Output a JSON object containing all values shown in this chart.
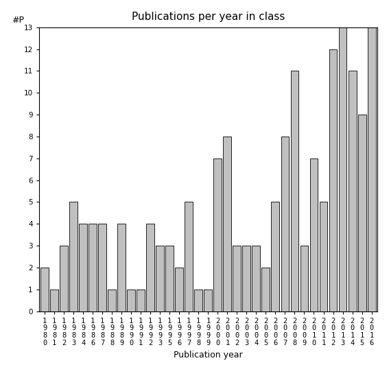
{
  "years": [
    "1980",
    "1981",
    "1982",
    "1983",
    "1984",
    "1986",
    "1987",
    "1988",
    "1989",
    "1990",
    "1991",
    "1992",
    "1993",
    "1995",
    "1996",
    "1997",
    "1998",
    "1999",
    "2000",
    "2001",
    "2002",
    "2003",
    "2004",
    "2005",
    "2006",
    "2007",
    "2008",
    "2009",
    "2010",
    "2011",
    "2012",
    "2013",
    "2014",
    "2015",
    "2016"
  ],
  "values": [
    2,
    1,
    3,
    5,
    4,
    4,
    4,
    1,
    4,
    1,
    1,
    4,
    3,
    3,
    2,
    5,
    1,
    1,
    7,
    8,
    3,
    3,
    3,
    2,
    5,
    8,
    11,
    3,
    7,
    5,
    12,
    13,
    11,
    9,
    13
  ],
  "bar_color": "#c0c0c0",
  "bar_edge_color": "#000000",
  "title": "Publications per year in class",
  "xlabel": "Publication year",
  "ylabel": "#P",
  "ylim": [
    0,
    13
  ],
  "yticks": [
    0,
    1,
    2,
    3,
    4,
    5,
    6,
    7,
    8,
    9,
    10,
    11,
    12,
    13
  ],
  "background_color": "#ffffff",
  "title_fontsize": 11,
  "label_fontsize": 9,
  "tick_fontsize": 7.5
}
